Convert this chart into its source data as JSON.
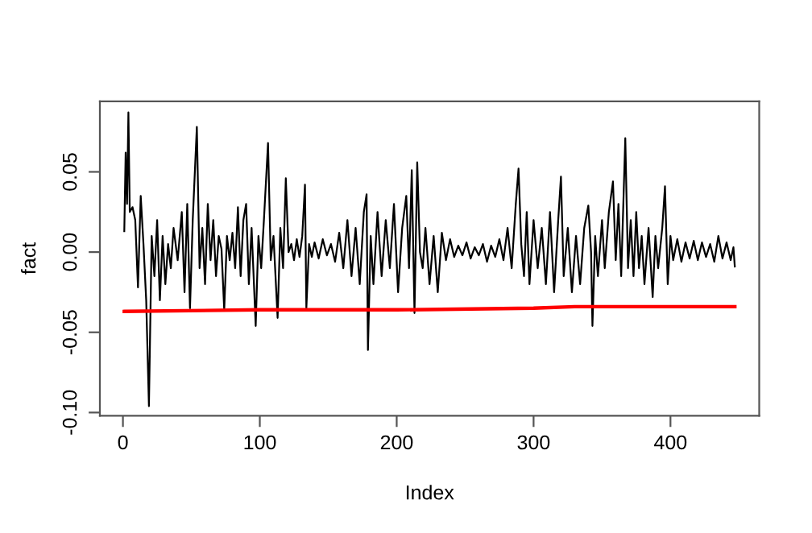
{
  "chart_data": {
    "type": "line",
    "xlabel": "Index",
    "ylabel": "fact",
    "xlim": [
      -16.84,
      464.84
    ],
    "ylim": [
      -0.102,
      0.094
    ],
    "xticks": [
      0,
      100,
      200,
      300,
      400
    ],
    "yticks": [
      {
        "value": -0.1,
        "label": "-0.10"
      },
      {
        "value": -0.05,
        "label": "-0.05"
      },
      {
        "value": 0,
        "label": "0.00"
      },
      {
        "value": 0.05,
        "label": "0.05"
      }
    ],
    "marker": "none",
    "line_style": "solid",
    "series": [
      {
        "color": "#000000",
        "x": [
          1,
          2,
          3,
          4,
          5,
          7,
          9,
          11,
          13,
          15,
          17,
          19,
          21,
          23,
          25,
          27,
          29,
          31,
          33,
          35,
          37,
          40,
          43,
          45,
          47,
          49,
          51,
          54,
          56,
          58,
          60,
          62,
          64,
          66,
          68,
          70,
          72,
          74,
          76,
          78,
          80,
          82,
          84,
          86,
          88,
          90,
          92,
          94,
          97,
          99,
          101,
          103,
          106,
          108,
          110,
          113,
          115,
          117,
          119,
          121,
          123,
          125,
          127,
          129,
          131,
          133,
          134,
          136,
          138,
          140,
          143,
          146,
          149,
          152,
          155,
          158,
          161,
          164,
          167,
          170,
          173,
          176,
          178,
          179,
          181,
          183,
          186,
          189,
          192,
          195,
          198,
          201,
          204,
          207,
          209,
          211,
          213,
          215,
          217,
          219,
          221,
          224,
          227,
          230,
          233,
          236,
          239,
          242,
          245,
          248,
          251,
          254,
          257,
          260,
          263,
          266,
          269,
          272,
          275,
          278,
          281,
          284,
          287,
          289,
          291,
          293,
          295,
          297,
          300,
          303,
          306,
          309,
          312,
          315,
          318,
          320,
          322,
          325,
          328,
          331,
          334,
          337,
          340,
          342,
          343,
          345,
          347,
          350,
          352,
          355,
          358,
          360,
          362,
          364,
          367,
          369,
          371,
          373,
          375,
          377,
          379,
          381,
          384,
          387,
          389,
          391,
          394,
          396,
          398,
          400,
          402,
          405,
          408,
          411,
          414,
          417,
          420,
          423,
          426,
          429,
          432,
          435,
          438,
          441,
          444,
          446,
          447
        ],
        "values": [
          0.013,
          0.062,
          0.03,
          0.087,
          0.025,
          0.028,
          0.02,
          -0.022,
          0.035,
          0.005,
          -0.03,
          -0.096,
          0.01,
          -0.015,
          0.02,
          -0.03,
          0.01,
          -0.02,
          0.005,
          -0.01,
          0.015,
          -0.005,
          0.025,
          -0.025,
          0.03,
          -0.035,
          0.02,
          0.078,
          -0.01,
          0.015,
          -0.02,
          0.03,
          -0.005,
          0.02,
          -0.015,
          0.01,
          0.002,
          -0.036,
          0.01,
          -0.005,
          0.012,
          -0.01,
          0.028,
          -0.015,
          0.02,
          0.03,
          -0.02,
          0.015,
          -0.046,
          0.01,
          -0.01,
          0.02,
          0.068,
          -0.005,
          0.01,
          -0.041,
          0.015,
          -0.01,
          0.046,
          0.0,
          0.005,
          -0.005,
          0.008,
          -0.003,
          0.01,
          0.042,
          -0.035,
          0.005,
          -0.003,
          0.006,
          -0.004,
          0.008,
          -0.002,
          0.005,
          -0.006,
          0.012,
          -0.01,
          0.02,
          -0.015,
          0.015,
          -0.02,
          0.025,
          0.036,
          -0.061,
          0.01,
          -0.02,
          0.025,
          -0.015,
          0.02,
          -0.01,
          0.03,
          -0.025,
          0.015,
          0.035,
          -0.01,
          0.051,
          -0.038,
          0.056,
          0.0,
          -0.01,
          0.015,
          -0.02,
          0.01,
          -0.025,
          0.012,
          -0.005,
          0.008,
          -0.003,
          0.004,
          -0.002,
          0.006,
          -0.004,
          0.003,
          -0.002,
          0.005,
          -0.006,
          0.004,
          -0.003,
          0.008,
          -0.005,
          0.015,
          -0.01,
          0.03,
          0.052,
          0.005,
          -0.015,
          0.025,
          -0.02,
          0.02,
          -0.01,
          0.015,
          -0.02,
          0.025,
          -0.025,
          0.02,
          0.047,
          -0.015,
          0.015,
          -0.025,
          0.01,
          -0.02,
          0.015,
          0.029,
          0.0,
          -0.046,
          0.01,
          -0.015,
          0.02,
          -0.01,
          0.025,
          0.044,
          -0.005,
          0.03,
          -0.015,
          0.071,
          -0.01,
          0.02,
          -0.015,
          0.025,
          -0.01,
          0.01,
          -0.02,
          0.015,
          -0.028,
          0.01,
          -0.01,
          0.015,
          0.041,
          -0.02,
          0.01,
          -0.005,
          0.008,
          -0.006,
          0.006,
          -0.004,
          0.007,
          -0.005,
          0.006,
          -0.003,
          0.005,
          -0.006,
          0.01,
          -0.004,
          0.006,
          -0.005,
          0.003,
          -0.009
        ]
      },
      {
        "color": "#ff0000",
        "x": [
          1,
          100,
          200,
          300,
          330,
          447
        ],
        "values": [
          -0.037,
          -0.036,
          -0.036,
          -0.035,
          -0.034,
          -0.034
        ]
      }
    ]
  }
}
